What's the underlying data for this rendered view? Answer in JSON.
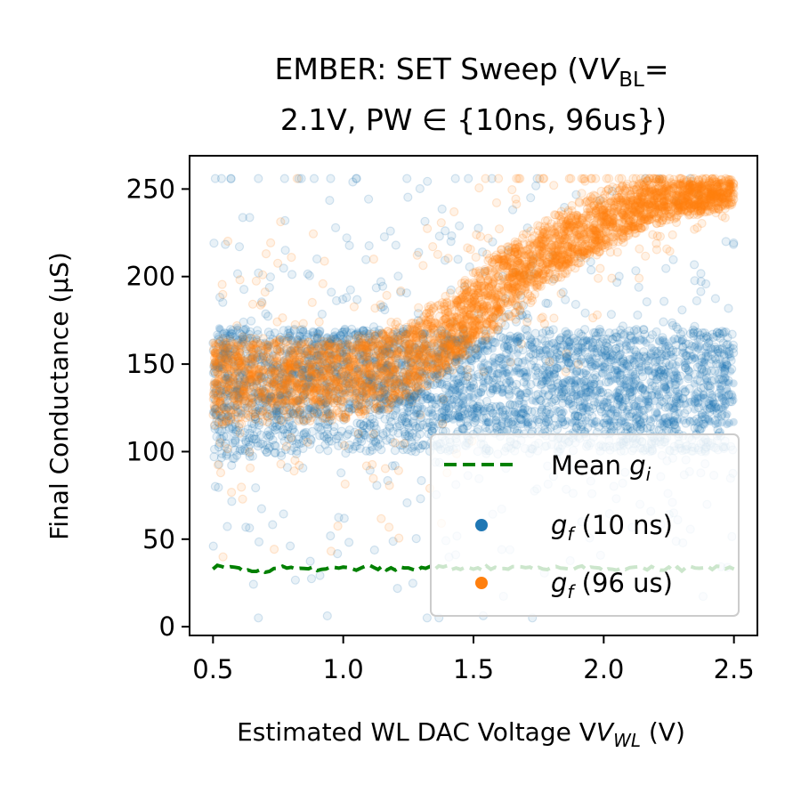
{
  "chart_data": {
    "type": "scatter",
    "title_line1": "EMBER: SET Sweep (V",
    "title_line1_sub": "BL",
    "title_line1_end": "=",
    "title_line2": "2.1V, PW ∈ {10ns, 96us})",
    "xlabel": "Estimated WL DAC Voltage V",
    "xlabel_sub": "WL",
    "xlabel_end": " (V)",
    "ylabel": "Final Conductance (µS)",
    "xlim": [
      0.41,
      2.59
    ],
    "ylim": [
      -5,
      269
    ],
    "xticks": [
      "0.5",
      "1.0",
      "1.5",
      "2.0",
      "2.5"
    ],
    "xtick_values": [
      0.5,
      1.0,
      1.5,
      2.0,
      2.5
    ],
    "yticks": [
      "0",
      "50",
      "100",
      "150",
      "200",
      "250"
    ],
    "ytick_values": [
      0,
      50,
      100,
      150,
      200,
      250
    ],
    "grid": false,
    "legend_position": "lower-right",
    "colors": {
      "g10": "#1f77b4",
      "g96": "#ff7f0e",
      "mean": "#008000"
    },
    "series": [
      {
        "name": "Mean g_i",
        "label_main": "Mean ",
        "label_italic": "g",
        "label_sub": "i",
        "label_end": "",
        "kind": "line",
        "x": [
          0.5,
          0.6,
          0.7,
          0.8,
          0.9,
          1.0,
          1.1,
          1.2,
          1.3,
          1.4,
          1.5,
          1.6,
          1.7,
          1.8,
          1.9,
          2.0,
          2.1,
          2.2,
          2.3,
          2.4,
          2.5
        ],
        "y": [
          34,
          33,
          32,
          34,
          33,
          33,
          34,
          33,
          33,
          34,
          33,
          34,
          33,
          33,
          34,
          33,
          34,
          33,
          33,
          34,
          33
        ]
      },
      {
        "name": "g_f (10 ns)",
        "label_main": "",
        "label_italic": "g",
        "label_sub": "f",
        "label_end": " (10 ns)",
        "kind": "scatter-band",
        "x": [
          0.5,
          1.0,
          1.4,
          1.5,
          2.0,
          2.5
        ],
        "y_center": [
          145,
          145,
          143,
          140,
          140,
          140
        ],
        "y_low": [
          95,
          100,
          100,
          100,
          100,
          100
        ],
        "y_high": [
          170,
          170,
          170,
          170,
          170,
          170
        ]
      },
      {
        "name": "g_f (96 us)",
        "label_main": "",
        "label_italic": "g",
        "label_sub": "f",
        "label_end": " (96 us)",
        "kind": "scatter-band",
        "x": [
          0.5,
          1.0,
          1.2,
          1.4,
          1.6,
          1.8,
          2.0,
          2.2,
          2.5
        ],
        "y_center": [
          145,
          145,
          150,
          165,
          195,
          215,
          230,
          243,
          250
        ],
        "y_low": [
          115,
          118,
          125,
          145,
          170,
          195,
          215,
          230,
          240
        ],
        "y_high": [
          165,
          165,
          170,
          190,
          215,
          235,
          250,
          256,
          256
        ]
      }
    ]
  }
}
